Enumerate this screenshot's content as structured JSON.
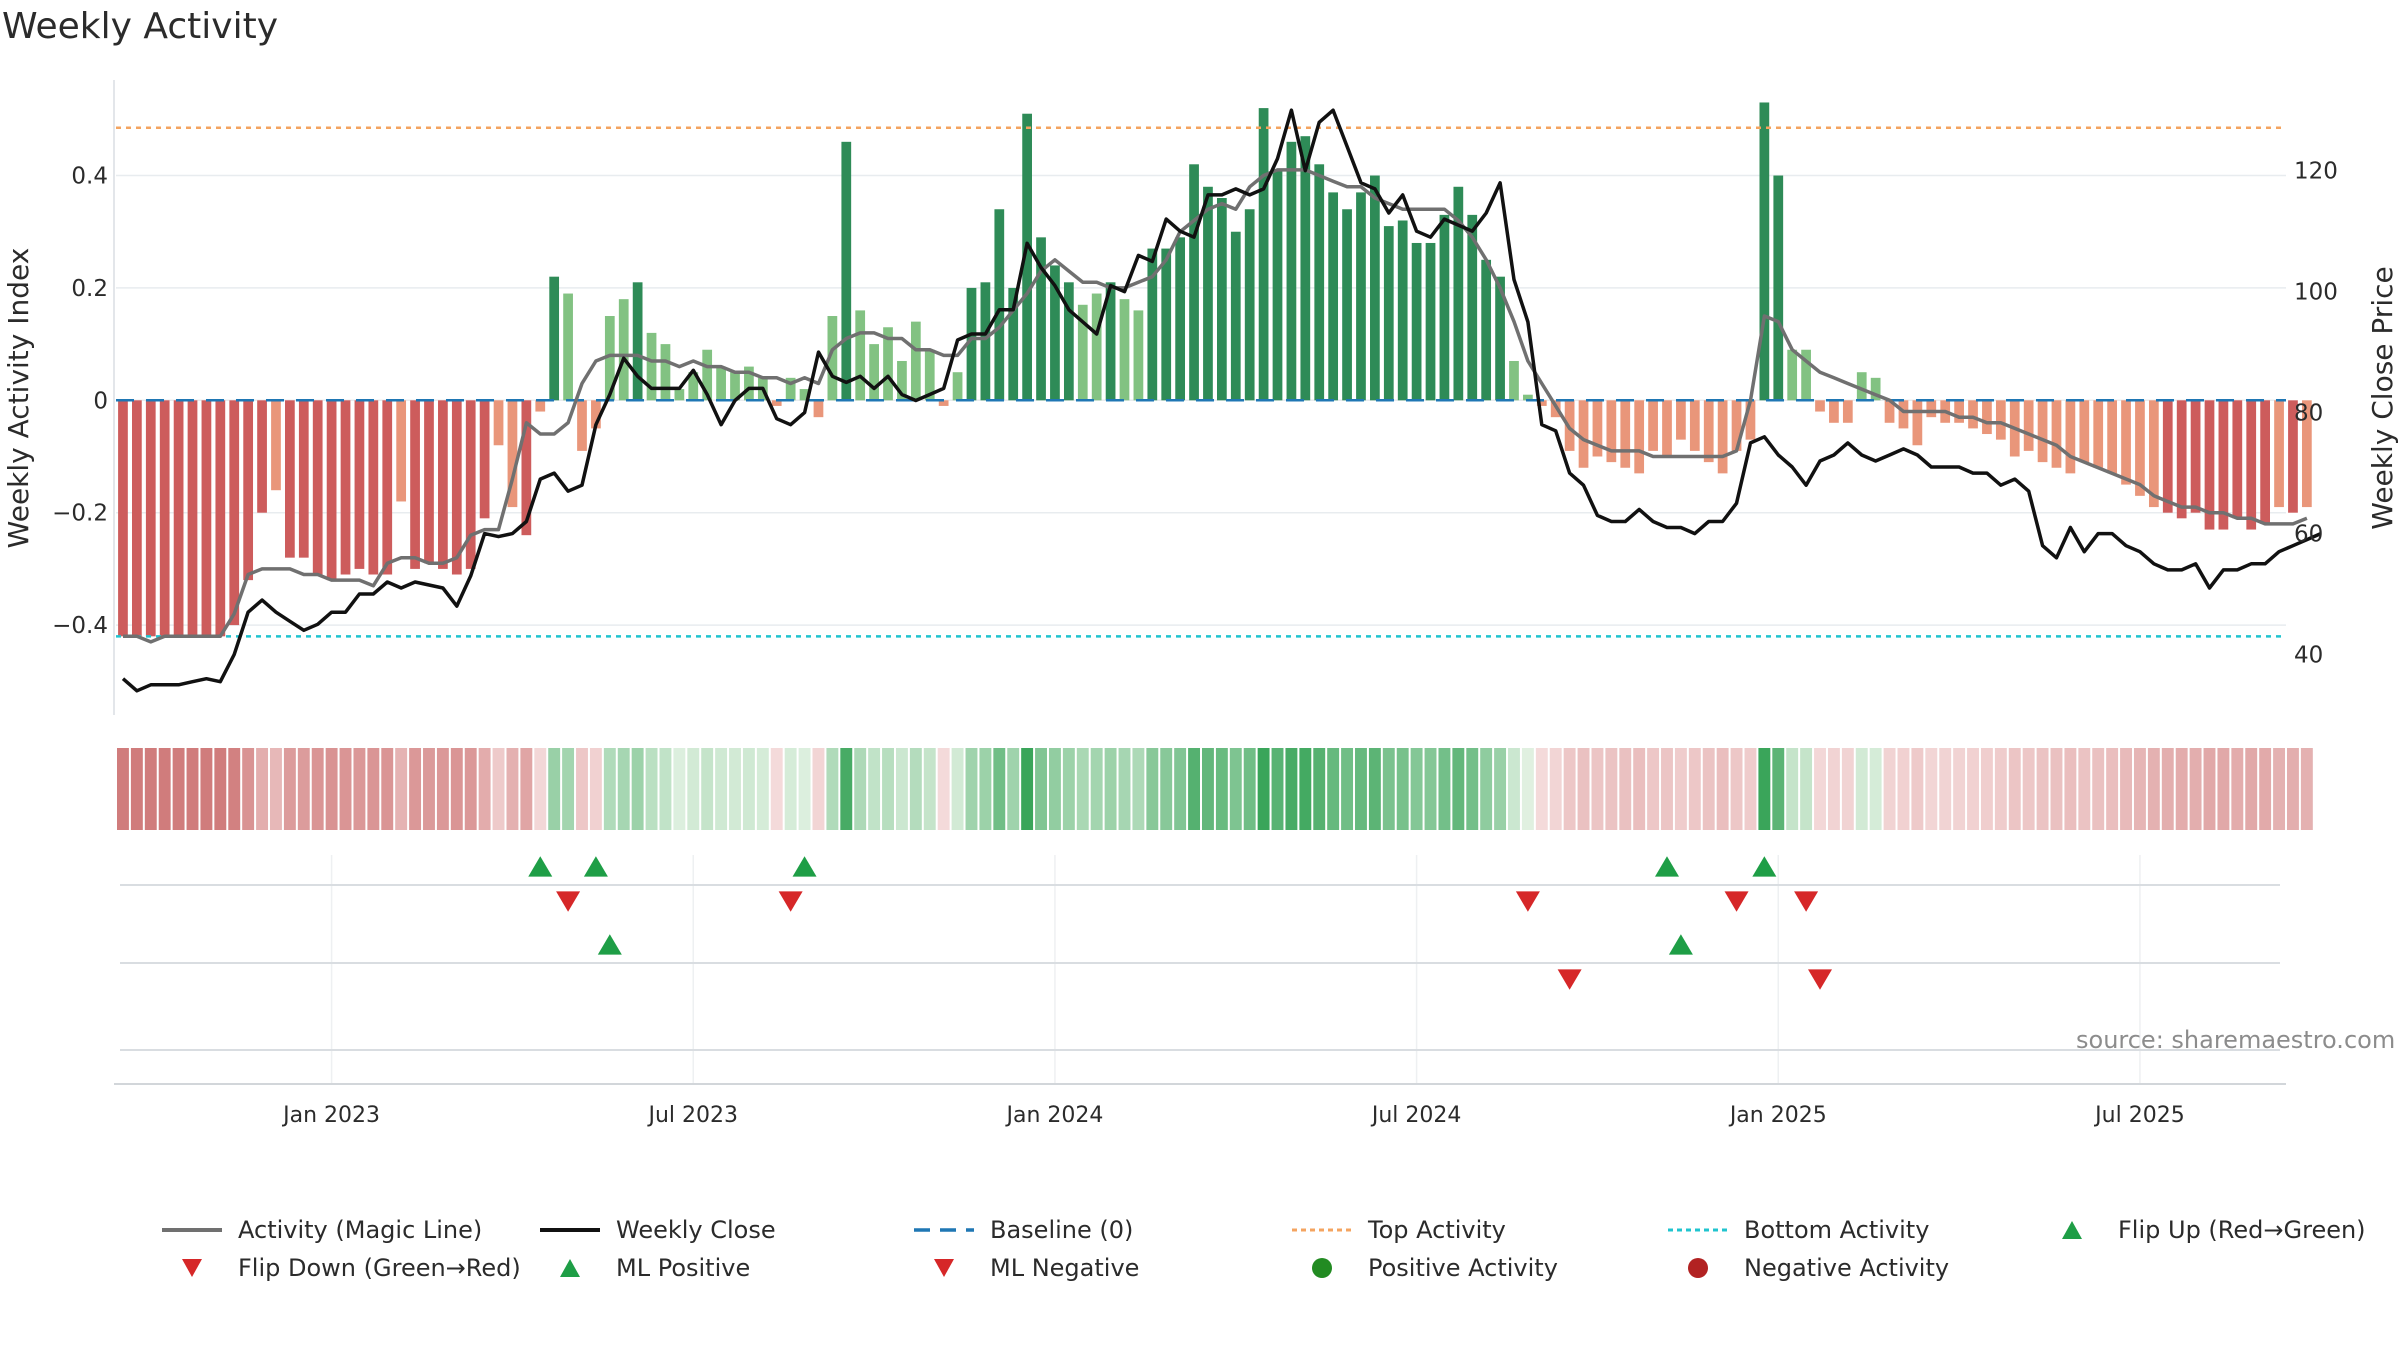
{
  "title": "Weekly Activity",
  "source": "source: sharemaestro.com",
  "colors": {
    "strong_green": "#2e8b57",
    "light_green": "#82c282",
    "strong_red": "#cd5c5c",
    "light_red": "#e9967a",
    "magic_line": "#707070",
    "close_line": "#111111",
    "baseline": "#1f77b4",
    "top_line": "#f4a460",
    "bottom_line": "#20c4cf",
    "marker_up": "#1e9e46",
    "marker_down": "#d62728",
    "pos_dot": "#228b22",
    "neg_dot": "#b22222"
  },
  "chart_data": {
    "type": "bar",
    "title": "Weekly Activity",
    "ylabel": "Weekly Activity Index",
    "y2label": "Weekly Close Price",
    "ylim": [
      -0.56,
      0.57
    ],
    "y2lim": [
      30,
      135
    ],
    "yticks": [
      {
        "value": 0.4,
        "label": "0.4"
      },
      {
        "value": 0.2,
        "label": "0.2"
      },
      {
        "value": 0,
        "label": "0"
      },
      {
        "value": -0.2,
        "label": "−0.2"
      },
      {
        "value": -0.4,
        "label": "−0.4"
      }
    ],
    "y2ticks": [
      {
        "value": 120,
        "label": "120"
      },
      {
        "value": 100,
        "label": "100"
      },
      {
        "value": 80,
        "label": "80"
      },
      {
        "value": 60,
        "label": "60"
      },
      {
        "value": 40,
        "label": "40"
      }
    ],
    "xticks": [
      {
        "week": 15,
        "label": "Jan 2023"
      },
      {
        "week": 41,
        "label": "Jul 2023"
      },
      {
        "week": 67,
        "label": "Jan 2024"
      },
      {
        "week": 93,
        "label": "Jul 2024"
      },
      {
        "week": 119,
        "label": "Jan 2025"
      },
      {
        "week": 145,
        "label": "Jul 2025"
      }
    ],
    "week_range": [
      0,
      156
    ],
    "top_activity": 0.485,
    "bottom_activity": -0.42,
    "baseline": 0,
    "activity": [
      -0.42,
      -0.42,
      -0.42,
      -0.42,
      -0.42,
      -0.42,
      -0.42,
      -0.42,
      -0.4,
      -0.32,
      -0.2,
      -0.16,
      -0.28,
      -0.28,
      -0.31,
      -0.32,
      -0.31,
      -0.3,
      -0.31,
      -0.31,
      -0.18,
      -0.3,
      -0.29,
      -0.3,
      -0.31,
      -0.3,
      -0.21,
      -0.08,
      -0.19,
      -0.24,
      -0.02,
      0.22,
      0.19,
      -0.09,
      -0.05,
      0.15,
      0.18,
      0.21,
      0.12,
      0.1,
      0.02,
      0.05,
      0.09,
      0.06,
      0.05,
      0.06,
      0.04,
      -0.01,
      0.04,
      0.02,
      -0.03,
      0.15,
      0.46,
      0.16,
      0.1,
      0.13,
      0.07,
      0.14,
      0.09,
      -0.01,
      0.05,
      0.2,
      0.21,
      0.34,
      0.2,
      0.51,
      0.29,
      0.24,
      0.21,
      0.17,
      0.19,
      0.21,
      0.18,
      0.16,
      0.27,
      0.27,
      0.29,
      0.42,
      0.38,
      0.36,
      0.3,
      0.34,
      0.52,
      0.41,
      0.46,
      0.47,
      0.42,
      0.37,
      0.34,
      0.37,
      0.4,
      0.31,
      0.32,
      0.28,
      0.28,
      0.33,
      0.38,
      0.33,
      0.25,
      0.22,
      0.07,
      0.01,
      -0.01,
      -0.03,
      -0.09,
      -0.12,
      -0.1,
      -0.11,
      -0.12,
      -0.13,
      -0.09,
      -0.1,
      -0.07,
      -0.09,
      -0.11,
      -0.13,
      -0.09,
      -0.07,
      0.53,
      0.4,
      0.09,
      0.09,
      -0.02,
      -0.04,
      -0.04,
      0.05,
      0.04,
      -0.04,
      -0.05,
      -0.08,
      -0.03,
      -0.04,
      -0.04,
      -0.05,
      -0.06,
      -0.07,
      -0.1,
      -0.09,
      -0.11,
      -0.12,
      -0.13,
      -0.11,
      -0.12,
      -0.13,
      -0.15,
      -0.17,
      -0.19,
      -0.2,
      -0.21,
      -0.2,
      -0.23,
      -0.23,
      -0.21,
      -0.23,
      -0.22,
      -0.19,
      -0.2,
      -0.19
    ],
    "magic_line": [
      -0.42,
      -0.42,
      -0.43,
      -0.42,
      -0.42,
      -0.42,
      -0.42,
      -0.42,
      -0.38,
      -0.31,
      -0.3,
      -0.3,
      -0.3,
      -0.31,
      -0.31,
      -0.32,
      -0.32,
      -0.32,
      -0.33,
      -0.29,
      -0.28,
      -0.28,
      -0.29,
      -0.29,
      -0.28,
      -0.24,
      -0.23,
      -0.23,
      -0.14,
      -0.04,
      -0.06,
      -0.06,
      -0.04,
      0.03,
      0.07,
      0.08,
      0.08,
      0.08,
      0.07,
      0.07,
      0.06,
      0.07,
      0.06,
      0.06,
      0.05,
      0.05,
      0.04,
      0.04,
      0.03,
      0.04,
      0.03,
      0.09,
      0.11,
      0.12,
      0.12,
      0.11,
      0.11,
      0.09,
      0.09,
      0.08,
      0.08,
      0.11,
      0.11,
      0.13,
      0.16,
      0.19,
      0.23,
      0.25,
      0.23,
      0.21,
      0.21,
      0.2,
      0.2,
      0.21,
      0.22,
      0.25,
      0.3,
      0.32,
      0.34,
      0.35,
      0.34,
      0.38,
      0.4,
      0.41,
      0.41,
      0.41,
      0.4,
      0.39,
      0.38,
      0.38,
      0.36,
      0.35,
      0.34,
      0.34,
      0.34,
      0.34,
      0.32,
      0.29,
      0.25,
      0.2,
      0.14,
      0.07,
      0.03,
      -0.01,
      -0.05,
      -0.07,
      -0.08,
      -0.09,
      -0.09,
      -0.09,
      -0.1,
      -0.1,
      -0.1,
      -0.1,
      -0.1,
      -0.1,
      -0.09,
      0.0,
      0.15,
      0.14,
      0.09,
      0.07,
      0.05,
      0.04,
      0.03,
      0.02,
      0.01,
      0.0,
      -0.02,
      -0.02,
      -0.02,
      -0.02,
      -0.03,
      -0.03,
      -0.04,
      -0.04,
      -0.05,
      -0.06,
      -0.07,
      -0.08,
      -0.1,
      -0.11,
      -0.12,
      -0.13,
      -0.14,
      -0.15,
      -0.17,
      -0.18,
      -0.19,
      -0.19,
      -0.2,
      -0.2,
      -0.21,
      -0.21,
      -0.22,
      -0.22,
      -0.22,
      -0.21
    ],
    "weekly_close": [
      36,
      34,
      35,
      35,
      35,
      35.5,
      36,
      35.5,
      40,
      47,
      49,
      47,
      45.5,
      44,
      45,
      47,
      47,
      50,
      50,
      52,
      51,
      52,
      51.5,
      51,
      48,
      53,
      60,
      59.5,
      60,
      62,
      69,
      70,
      67,
      68,
      78,
      83,
      89,
      86,
      84,
      84,
      84,
      87,
      83,
      78,
      82,
      84,
      84,
      79,
      78,
      80,
      90,
      86,
      85,
      86,
      84,
      86,
      83,
      82,
      83,
      84,
      92,
      93,
      93,
      97,
      97,
      108,
      104,
      101,
      97,
      95,
      93,
      101,
      100,
      106,
      105,
      112,
      110,
      109,
      116,
      116,
      117,
      116,
      117,
      122,
      130,
      120,
      128,
      130,
      124,
      118,
      117,
      113,
      116,
      110,
      109,
      112,
      111,
      110,
      113,
      118,
      102,
      95,
      78,
      77,
      70,
      68,
      63,
      62,
      62,
      64,
      62,
      61,
      61,
      60,
      62,
      62,
      65,
      75,
      76,
      73,
      71,
      68,
      72,
      73,
      75,
      73,
      72,
      73,
      74,
      73,
      71,
      71,
      71,
      70,
      70,
      68,
      69,
      67,
      58,
      56,
      61,
      57,
      60,
      60,
      58,
      57,
      55,
      54,
      54,
      55,
      51,
      54,
      54,
      55,
      55,
      57,
      58,
      59,
      60
    ],
    "ticker_strip": [
      -0.42,
      -0.42,
      -0.42,
      -0.42,
      -0.42,
      -0.42,
      -0.42,
      -0.42,
      -0.4,
      -0.32,
      -0.2,
      -0.16,
      -0.28,
      -0.28,
      -0.31,
      -0.32,
      -0.31,
      -0.3,
      -0.31,
      -0.31,
      -0.18,
      -0.3,
      -0.29,
      -0.3,
      -0.31,
      -0.3,
      -0.21,
      -0.08,
      -0.19,
      -0.24,
      -0.02,
      0.22,
      0.19,
      -0.09,
      -0.05,
      0.15,
      0.18,
      0.21,
      0.12,
      0.1,
      0.02,
      0.05,
      0.09,
      0.06,
      0.05,
      0.06,
      0.04,
      -0.01,
      0.04,
      0.02,
      -0.03,
      0.15,
      0.46,
      0.16,
      0.1,
      0.13,
      0.07,
      0.14,
      0.09,
      -0.01,
      0.05,
      0.2,
      0.21,
      0.34,
      0.2,
      0.51,
      0.29,
      0.24,
      0.21,
      0.17,
      0.19,
      0.21,
      0.18,
      0.16,
      0.27,
      0.27,
      0.29,
      0.42,
      0.38,
      0.36,
      0.3,
      0.34,
      0.52,
      0.41,
      0.46,
      0.47,
      0.42,
      0.37,
      0.34,
      0.37,
      0.4,
      0.31,
      0.32,
      0.28,
      0.28,
      0.33,
      0.38,
      0.33,
      0.25,
      0.22,
      0.07,
      0.01,
      -0.01,
      -0.03,
      -0.09,
      -0.12,
      -0.1,
      -0.11,
      -0.12,
      -0.13,
      -0.09,
      -0.1,
      -0.07,
      -0.09,
      -0.11,
      -0.13,
      -0.09,
      -0.07,
      0.53,
      0.4,
      0.09,
      0.09,
      -0.02,
      -0.04,
      -0.04,
      0.05,
      0.04,
      -0.04,
      -0.05,
      -0.08,
      -0.03,
      -0.04,
      -0.04,
      -0.05,
      -0.06,
      -0.07,
      -0.1,
      -0.09,
      -0.11,
      -0.12,
      -0.13,
      -0.11,
      -0.12,
      -0.13,
      -0.15,
      -0.17,
      -0.19,
      -0.2,
      -0.21,
      -0.2,
      -0.23,
      -0.23,
      -0.21,
      -0.23,
      -0.22,
      -0.19,
      -0.2,
      -0.19
    ],
    "flips_up_weeks": [
      30,
      34,
      49,
      111,
      118
    ],
    "flips_down_weeks": [
      32,
      48,
      101,
      116,
      121
    ],
    "ml_positive_weeks": [
      35,
      112
    ],
    "ml_negative_weeks": [
      104,
      122
    ],
    "legend": [
      {
        "key": "magic",
        "label": "Activity (Magic Line)"
      },
      {
        "key": "close",
        "label": "Weekly Close"
      },
      {
        "key": "baseline",
        "label": "Baseline (0)"
      },
      {
        "key": "top",
        "label": "Top Activity"
      },
      {
        "key": "bottom",
        "label": "Bottom Activity"
      },
      {
        "key": "flip_up",
        "label": "Flip Up (Red→Green)"
      },
      {
        "key": "flip_down",
        "label": "Flip Down (Green→Red)"
      },
      {
        "key": "ml_pos",
        "label": "ML Positive"
      },
      {
        "key": "ml_neg",
        "label": "ML Negative"
      },
      {
        "key": "pos_act",
        "label": "Positive Activity"
      },
      {
        "key": "neg_act",
        "label": "Negative Activity"
      }
    ]
  }
}
